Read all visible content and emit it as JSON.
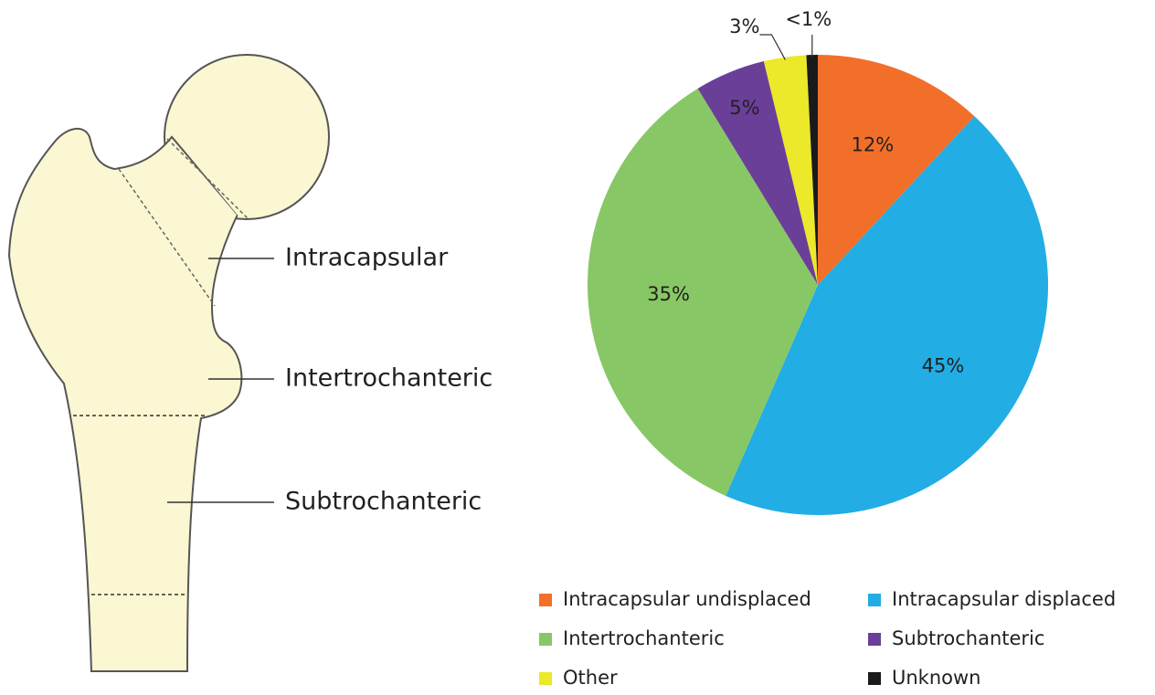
{
  "diagram": {
    "labels": [
      "Intracapsular",
      "Intertrochanteric",
      "Subtrochanteric"
    ]
  },
  "chart_data": {
    "type": "pie",
    "categories": [
      "Intracapsular undisplaced",
      "Intracapsular displaced",
      "Intertrochanteric",
      "Subtrochanteric",
      "Other",
      "Unknown"
    ],
    "values": [
      12,
      45,
      35,
      5,
      3,
      0.8
    ],
    "value_labels": [
      "12%",
      "45%",
      "35%",
      "5%",
      "3%",
      "<1%"
    ],
    "colors": [
      "#f26f2a",
      "#22ade4",
      "#88c765",
      "#6a3f98",
      "#ece82a",
      "#1a1a1a"
    ]
  }
}
